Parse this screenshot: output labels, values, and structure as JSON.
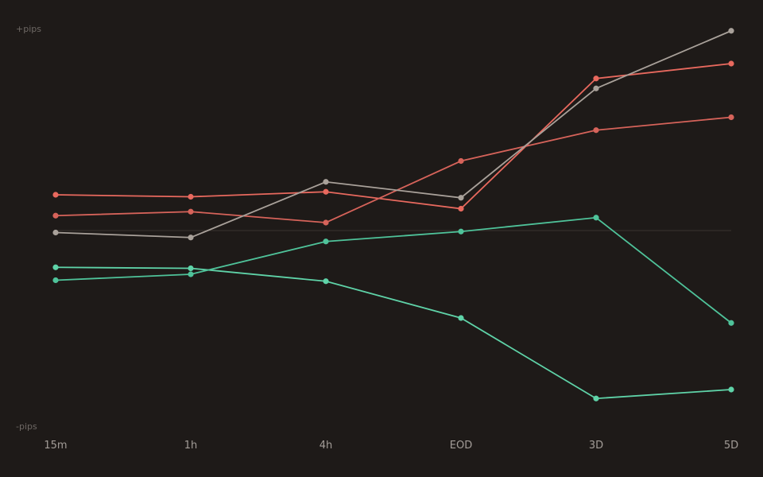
{
  "chart_data": {
    "type": "line",
    "categories": [
      "15m",
      "1h",
      "4h",
      "EOD",
      "3D",
      "5D"
    ],
    "y_top_label": "+pips",
    "y_bottom_label": "-pips",
    "ylim": [
      -100,
      100
    ],
    "baseline": 0,
    "grid": false,
    "legend": "none",
    "series": [
      {
        "color": "#e8695e",
        "values": [
          18,
          17,
          19.5,
          11,
          76.5,
          84
        ]
      },
      {
        "color": "#d6635a",
        "values": [
          7.5,
          9.5,
          4,
          35,
          50.5,
          57
        ]
      },
      {
        "color": "#a9a19a",
        "values": [
          -1,
          -3.5,
          24.5,
          16.5,
          71.5,
          100.5
        ]
      },
      {
        "color": "#5fd3a8",
        "values": [
          -18.5,
          -19,
          -25.5,
          -44,
          -84.5,
          -80
        ]
      },
      {
        "color": "#4fc39a",
        "values": [
          -25,
          -22,
          -5.5,
          -0.5,
          6.5,
          -46.5
        ]
      }
    ]
  }
}
